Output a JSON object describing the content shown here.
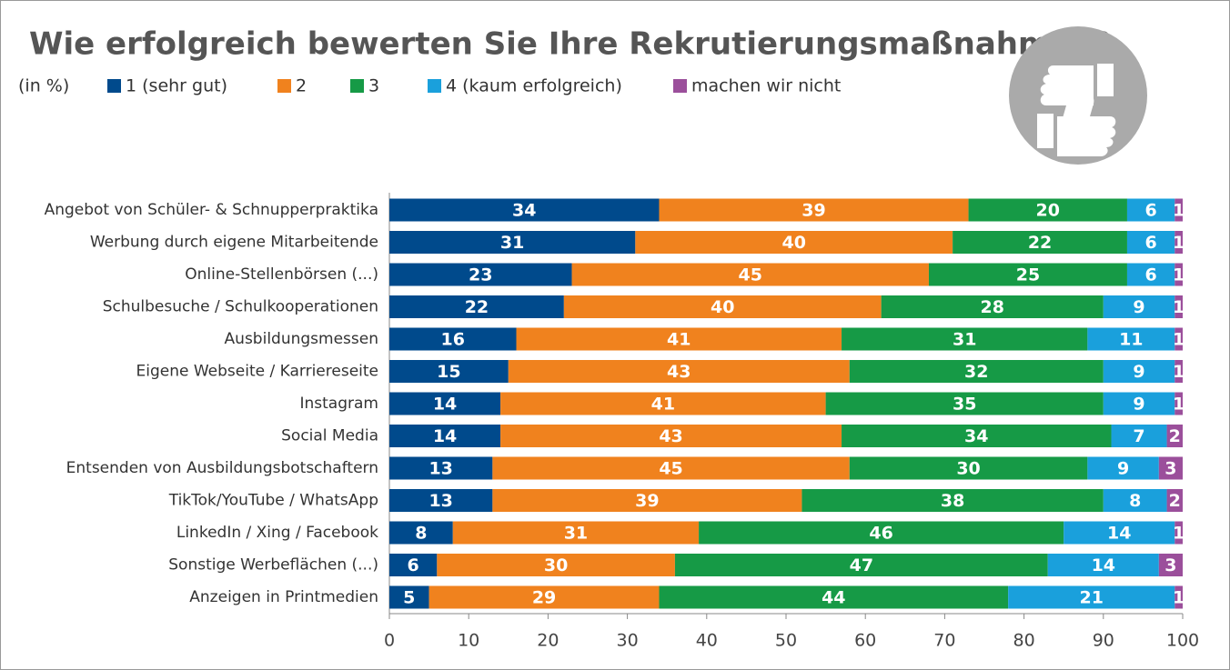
{
  "chart_data": {
    "type": "stacked-bar-horizontal",
    "title": "Wie erfolgreich bewerten Sie Ihre Rekrutierungsmaßnahmen?",
    "subtitle": "(in %)",
    "categories": [
      "Angebot von Schüler- & Schnupperpraktika",
      "Werbung durch eigene Mitarbeitende",
      "Online-Stellenbörsen (...)",
      "Schulbesuche / Schulkooperationen",
      "Ausbildungsmessen",
      "Eigene Webseite / Karriereseite",
      "Instagram",
      "Social Media",
      "Entsenden von Ausbildungsbotschaftern",
      "TikTok/YouTube / WhatsApp",
      "LinkedIn / Xing / Facebook",
      "Sonstige Werbeflächen (...)",
      "Anzeigen in Printmedien"
    ],
    "series": [
      {
        "name": "1 (sehr gut)",
        "color": "#004a8c",
        "values": [
          34,
          31,
          23,
          22,
          16,
          15,
          14,
          14,
          13,
          13,
          8,
          6,
          5
        ]
      },
      {
        "name": "2",
        "color": "#f0821e",
        "values": [
          39,
          40,
          45,
          40,
          41,
          43,
          41,
          43,
          45,
          39,
          31,
          30,
          29
        ]
      },
      {
        "name": "3",
        "color": "#169a46",
        "values": [
          20,
          22,
          25,
          28,
          31,
          32,
          35,
          34,
          30,
          38,
          46,
          47,
          44
        ]
      },
      {
        "name": "4 (kaum erfolgreich)",
        "color": "#1aa0dc",
        "values": [
          6,
          6,
          6,
          9,
          11,
          9,
          9,
          7,
          9,
          8,
          14,
          14,
          21
        ]
      },
      {
        "name": "machen wir nicht",
        "color": "#9b4f9b",
        "values": [
          1,
          1,
          1,
          1,
          1,
          1,
          1,
          2,
          3,
          2,
          1,
          3,
          1
        ]
      }
    ],
    "xlim": [
      0,
      100
    ],
    "xticks": [
      0,
      10,
      20,
      30,
      40,
      50,
      60,
      70,
      80,
      90,
      100
    ]
  }
}
